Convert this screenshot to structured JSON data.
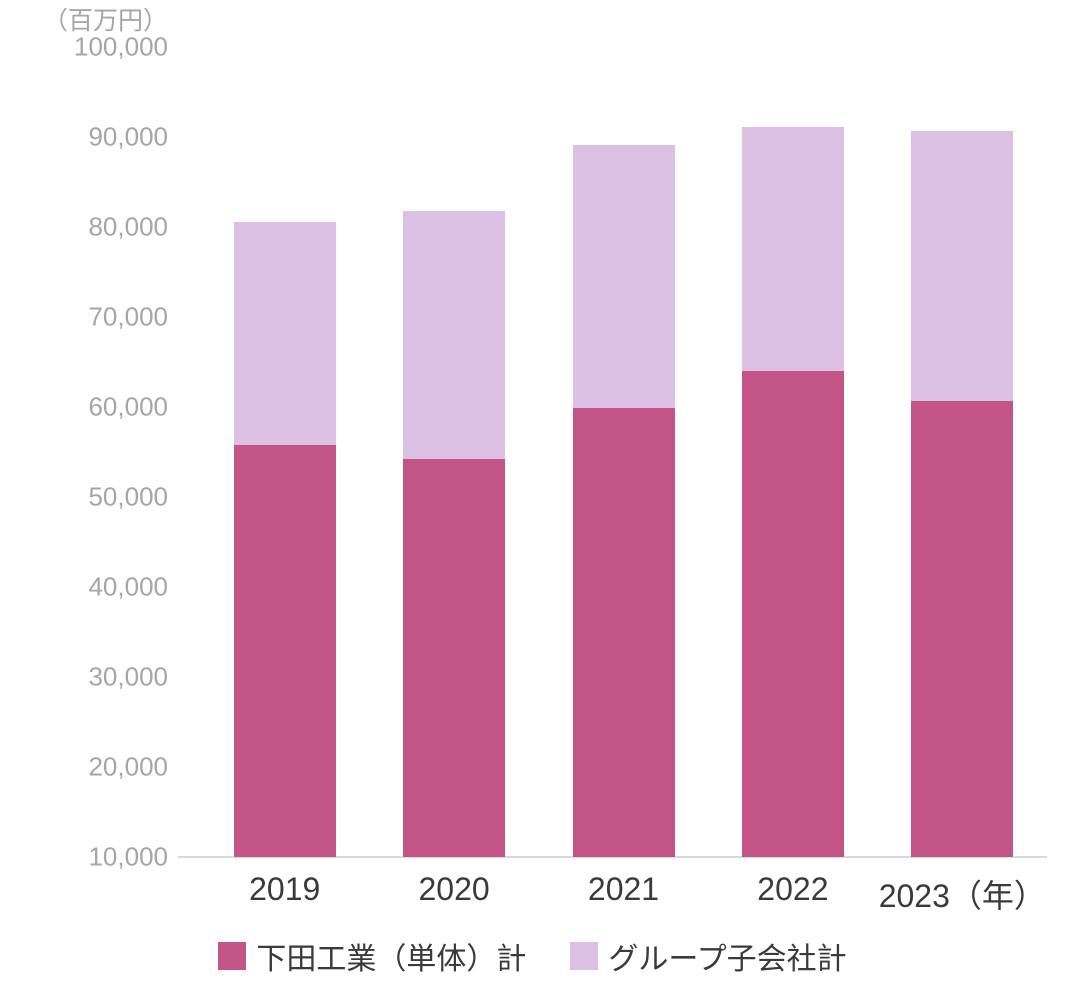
{
  "chart_data": {
    "type": "bar",
    "stacked": true,
    "title": "",
    "unit_label": "（百万円）",
    "xlabel": "",
    "ylabel": "百万円",
    "categories": [
      "2019",
      "2020",
      "2021",
      "2022",
      "2023"
    ],
    "x_tick_labels": [
      "2019",
      "2020",
      "2021",
      "2022",
      "2023（年）"
    ],
    "series": [
      {
        "name": "下田工業（単体）計",
        "color": "#c25585",
        "values": [
          55800,
          54200,
          59900,
          64000,
          60700
        ]
      },
      {
        "name": "グループ子会社計",
        "color": "#dcc0e4",
        "values": [
          24800,
          27600,
          29200,
          27100,
          30000
        ]
      }
    ],
    "totals": [
      80600,
      81800,
      89100,
      91100,
      90700
    ],
    "ylim": [
      10000,
      100000
    ],
    "y_ticks": [
      {
        "value": 10000,
        "label": "10,000"
      },
      {
        "value": 20000,
        "label": "20,000"
      },
      {
        "value": 30000,
        "label": "30,000"
      },
      {
        "value": 40000,
        "label": "40,000"
      },
      {
        "value": 50000,
        "label": "50,000"
      },
      {
        "value": 60000,
        "label": "60,000"
      },
      {
        "value": 70000,
        "label": "70,000"
      },
      {
        "value": 80000,
        "label": "80,000"
      },
      {
        "value": 90000,
        "label": "90,000"
      },
      {
        "value": 100000,
        "label": "100,000"
      }
    ],
    "grid": false,
    "legend_position": "bottom"
  },
  "colors": {
    "axis_line": "#d9d9d9",
    "y_tick_text": "#a6a6a6",
    "x_tick_text": "#3a3a3a",
    "legend_text": "#3a3a3a",
    "background": "#ffffff"
  }
}
